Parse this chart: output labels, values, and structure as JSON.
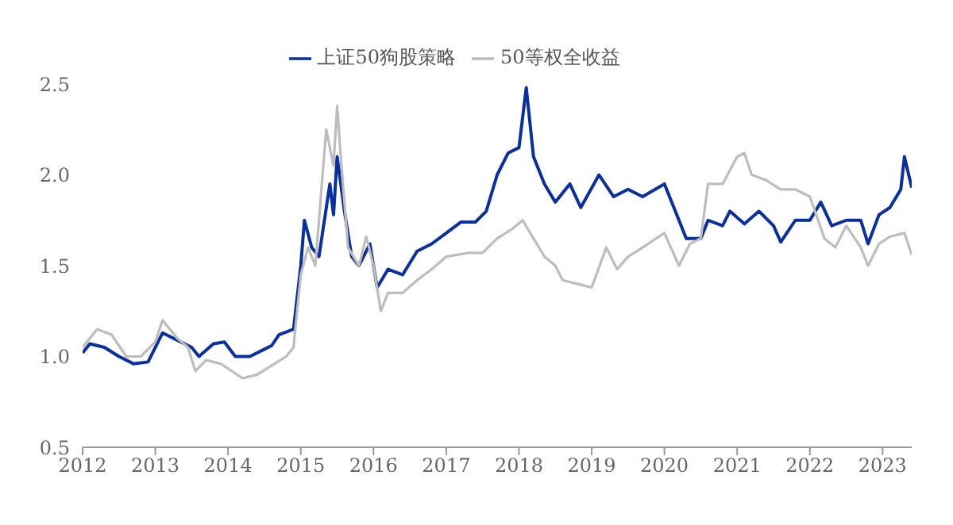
{
  "chart_data": {
    "type": "line",
    "xlim": [
      2012,
      2023.4
    ],
    "xticks": [
      2012,
      2013,
      2014,
      2015,
      2016,
      2017,
      2018,
      2019,
      2020,
      2021,
      2022,
      2023
    ],
    "ylim": [
      0.5,
      2.5
    ],
    "yticks": [
      0.5,
      {
        "value": 1,
        "label": "1.0"
      },
      1.5,
      {
        "value": 2,
        "label": "2.0"
      },
      2.5
    ],
    "grid": false,
    "legend": "top",
    "marker": "none",
    "line_style": "solid",
    "series": [
      {
        "name": "上证50狗股策略",
        "color": "#0a2f9e",
        "x": [
          2012.0,
          2012.1,
          2012.3,
          2012.5,
          2012.7,
          2012.9,
          2013.0,
          2013.1,
          2013.3,
          2013.5,
          2013.6,
          2013.8,
          2013.95,
          2014.1,
          2014.3,
          2014.5,
          2014.6,
          2014.7,
          2014.9,
          2015.0,
          2015.05,
          2015.15,
          2015.25,
          2015.4,
          2015.45,
          2015.5,
          2015.6,
          2015.7,
          2015.8,
          2015.95,
          2016.05,
          2016.2,
          2016.4,
          2016.6,
          2016.8,
          2017.0,
          2017.2,
          2017.4,
          2017.55,
          2017.7,
          2017.85,
          2018.0,
          2018.1,
          2018.2,
          2018.35,
          2018.5,
          2018.7,
          2018.85,
          2019.1,
          2019.3,
          2019.5,
          2019.7,
          2020.0,
          2020.15,
          2020.3,
          2020.5,
          2020.6,
          2020.8,
          2020.9,
          2021.1,
          2021.3,
          2021.5,
          2021.6,
          2021.8,
          2022.0,
          2022.15,
          2022.3,
          2022.5,
          2022.7,
          2022.8,
          2022.95,
          2023.1,
          2023.25,
          2023.3,
          2023.4
        ],
        "values": [
          1.02,
          1.07,
          1.05,
          1.0,
          0.96,
          0.97,
          1.05,
          1.13,
          1.09,
          1.05,
          1.0,
          1.07,
          1.08,
          1.0,
          1.0,
          1.04,
          1.06,
          1.12,
          1.15,
          1.5,
          1.75,
          1.6,
          1.55,
          1.95,
          1.78,
          2.1,
          1.8,
          1.55,
          1.5,
          1.62,
          1.38,
          1.48,
          1.45,
          1.58,
          1.62,
          1.68,
          1.74,
          1.74,
          1.8,
          2.0,
          2.12,
          2.15,
          2.48,
          2.1,
          1.95,
          1.85,
          1.95,
          1.82,
          2.0,
          1.88,
          1.92,
          1.88,
          1.95,
          1.8,
          1.65,
          1.65,
          1.75,
          1.72,
          1.8,
          1.73,
          1.8,
          1.72,
          1.63,
          1.75,
          1.75,
          1.85,
          1.72,
          1.75,
          1.75,
          1.62,
          1.78,
          1.82,
          1.92,
          2.1,
          1.93
        ]
      },
      {
        "name": "50等权全收益",
        "color": "#bdbdbd",
        "x": [
          2012.0,
          2012.2,
          2012.4,
          2012.6,
          2012.8,
          2013.0,
          2013.1,
          2013.3,
          2013.45,
          2013.55,
          2013.7,
          2013.9,
          2014.2,
          2014.4,
          2014.6,
          2014.8,
          2014.9,
          2015.0,
          2015.1,
          2015.2,
          2015.35,
          2015.45,
          2015.5,
          2015.55,
          2015.65,
          2015.8,
          2015.9,
          2016.0,
          2016.1,
          2016.2,
          2016.4,
          2016.6,
          2016.8,
          2017.0,
          2017.3,
          2017.5,
          2017.7,
          2017.9,
          2018.05,
          2018.2,
          2018.35,
          2018.5,
          2018.6,
          2018.8,
          2019.0,
          2019.2,
          2019.35,
          2019.5,
          2019.7,
          2020.0,
          2020.2,
          2020.35,
          2020.5,
          2020.6,
          2020.8,
          2021.0,
          2021.1,
          2021.2,
          2021.4,
          2021.6,
          2021.8,
          2022.0,
          2022.2,
          2022.35,
          2022.5,
          2022.7,
          2022.8,
          2022.95,
          2023.1,
          2023.3,
          2023.4
        ],
        "values": [
          1.05,
          1.15,
          1.12,
          1.0,
          1.0,
          1.08,
          1.2,
          1.1,
          1.05,
          0.92,
          0.98,
          0.96,
          0.88,
          0.9,
          0.95,
          1.0,
          1.05,
          1.45,
          1.6,
          1.5,
          2.25,
          2.05,
          2.38,
          2.1,
          1.6,
          1.5,
          1.66,
          1.5,
          1.25,
          1.35,
          1.35,
          1.42,
          1.48,
          1.55,
          1.57,
          1.57,
          1.65,
          1.7,
          1.75,
          1.65,
          1.55,
          1.5,
          1.42,
          1.4,
          1.38,
          1.6,
          1.48,
          1.55,
          1.6,
          1.68,
          1.5,
          1.62,
          1.65,
          1.95,
          1.95,
          2.1,
          2.12,
          2.0,
          1.97,
          1.92,
          1.92,
          1.88,
          1.65,
          1.6,
          1.72,
          1.6,
          1.5,
          1.62,
          1.66,
          1.68,
          1.56
        ]
      }
    ]
  }
}
